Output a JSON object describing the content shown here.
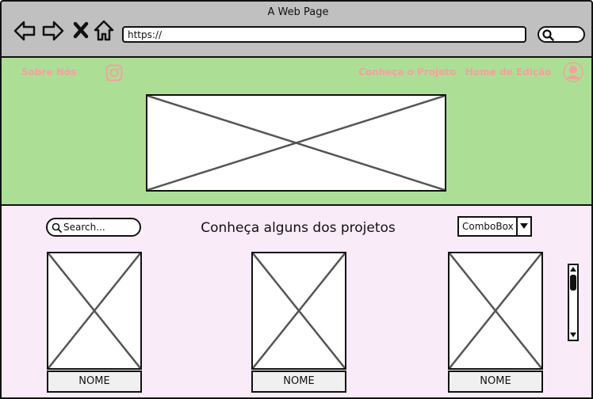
{
  "window": {
    "title": "A Web Page"
  },
  "browser": {
    "url": "https://",
    "nav_icons": [
      "back-arrow-icon",
      "forward-arrow-icon",
      "close-icon",
      "home-icon"
    ]
  },
  "header": {
    "links": {
      "about": "Sobre Nós",
      "project": "Conheça o Projeto",
      "editing": "Home de Edição"
    },
    "link_color": "#f2a29e",
    "background_color": "#acdf95"
  },
  "content": {
    "title": "Conheça alguns dos projetos",
    "search_placeholder": "Search...",
    "combobox_value": "ComboBox",
    "background_color": "#f9ebf8",
    "cards": [
      {
        "name": "NOME"
      },
      {
        "name": "NOME"
      },
      {
        "name": "NOME"
      }
    ]
  }
}
